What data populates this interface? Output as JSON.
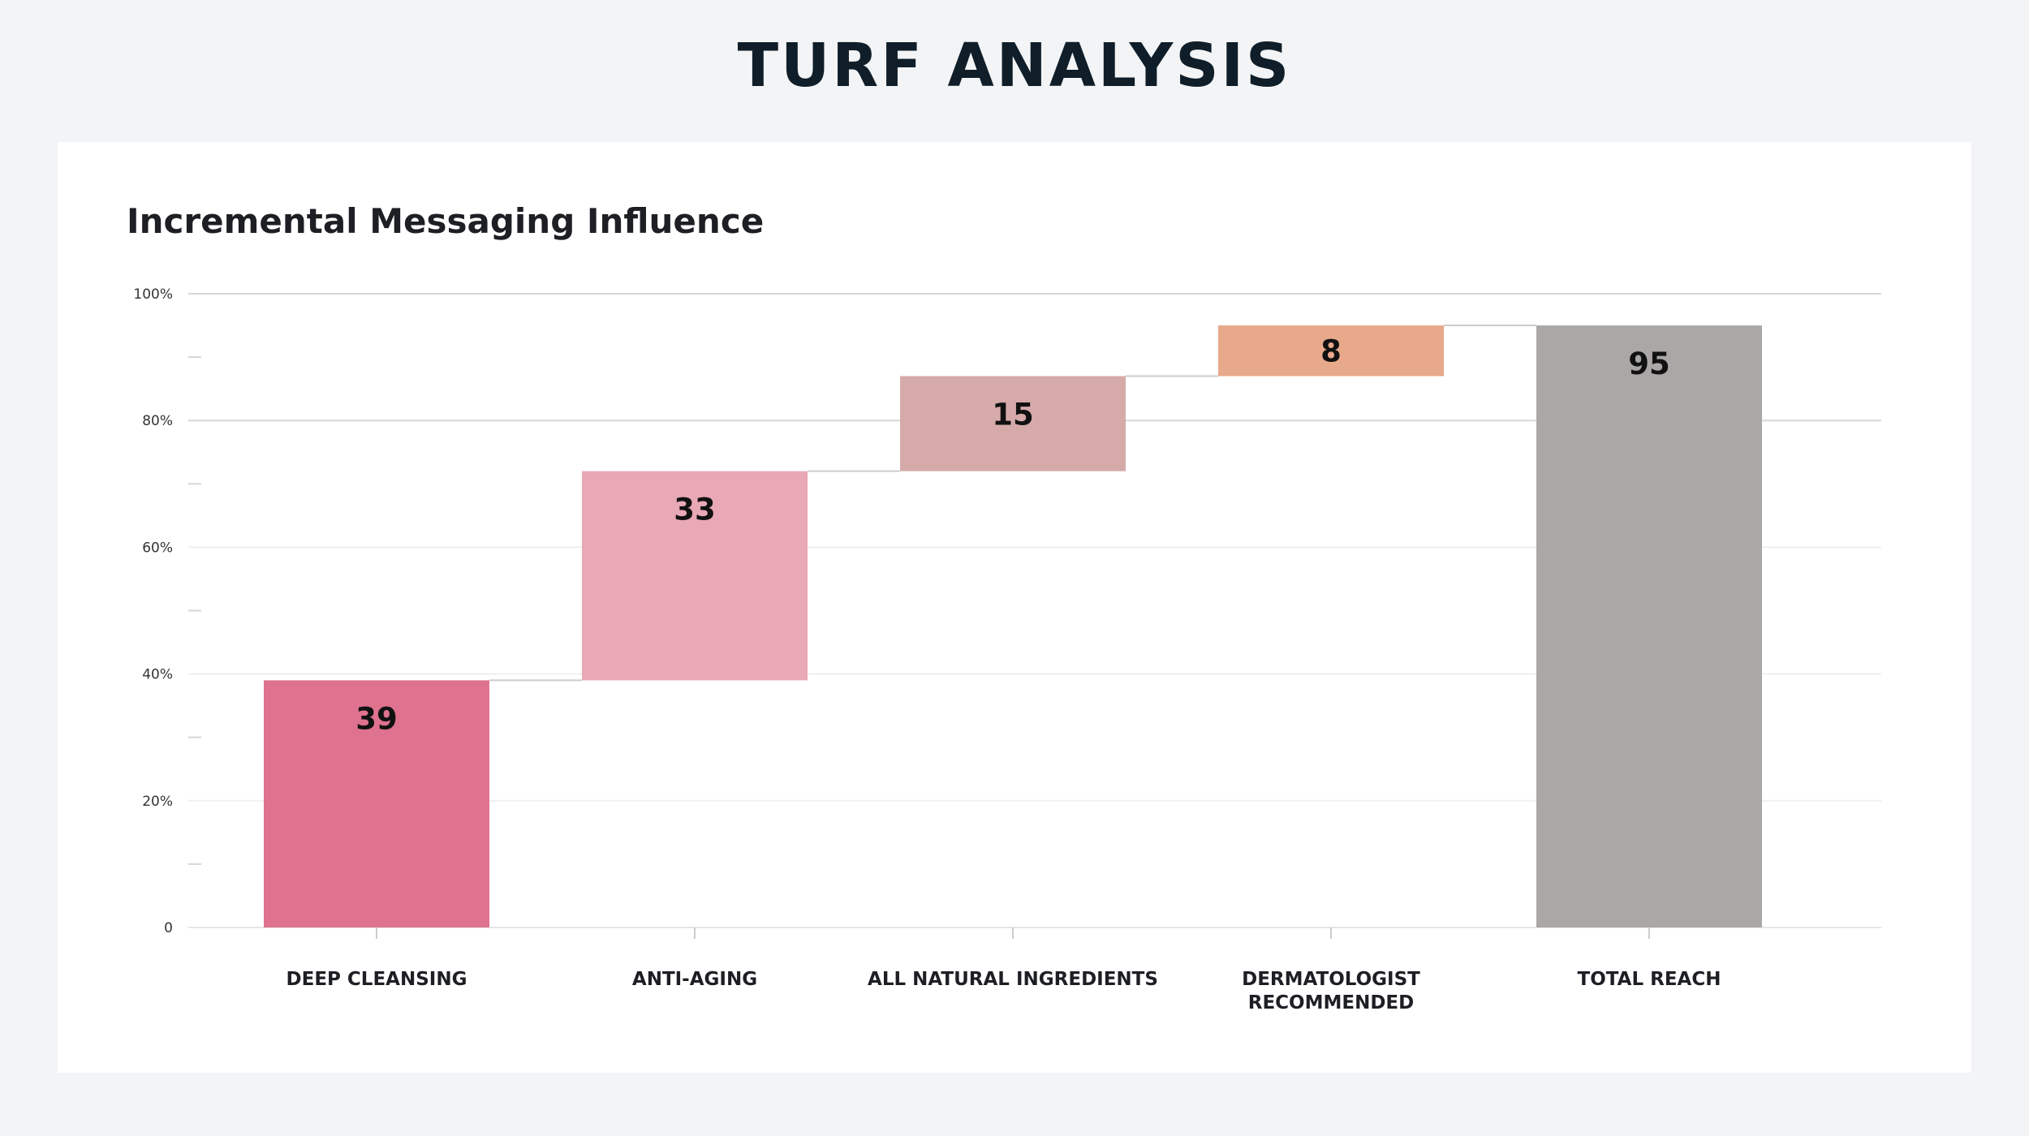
{
  "page": {
    "title": "TURF ANALYSIS"
  },
  "chart_data": {
    "type": "bar",
    "subtype": "waterfall",
    "title": "Incremental Messaging Influence",
    "xlabel": "",
    "ylabel": "",
    "ylim": [
      0,
      100
    ],
    "y_ticks": [
      {
        "value": 0,
        "label": "0"
      },
      {
        "value": 20,
        "label": "20%"
      },
      {
        "value": 40,
        "label": "40%"
      },
      {
        "value": 60,
        "label": "60%"
      },
      {
        "value": 80,
        "label": "80%"
      },
      {
        "value": 100,
        "label": "100%"
      }
    ],
    "grid": true,
    "legend": "none",
    "categories": [
      [
        "DEEP CLEANSING"
      ],
      [
        "ANTI-AGING"
      ],
      [
        "ALL NATURAL INGREDIENTS"
      ],
      [
        "DERMATOLOGIST",
        "RECOMMENDED"
      ],
      [
        "TOTAL REACH"
      ]
    ],
    "values": [
      39,
      33,
      15,
      8,
      95
    ],
    "bases": [
      0,
      39,
      72,
      87,
      0
    ],
    "data_labels": [
      "39",
      "33",
      "15",
      "8",
      "95"
    ],
    "is_total": [
      false,
      false,
      false,
      false,
      true
    ],
    "colors": [
      "#de728f",
      "#e8a8b6",
      "#d5aaa9",
      "#e8a98b",
      "#aba7a7"
    ]
  },
  "colors": {
    "page_background": "#f3f4f6",
    "card_background": "#ffffff",
    "title_text": "#0f1e28",
    "gridline": "#dddddd",
    "connector": "#cccccc"
  }
}
